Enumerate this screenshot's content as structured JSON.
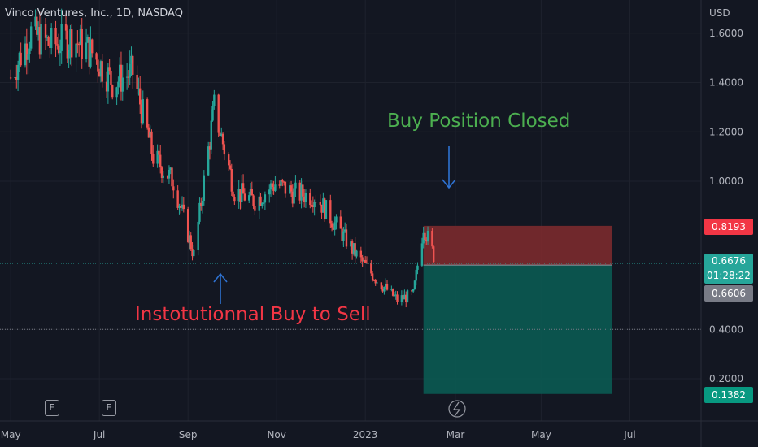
{
  "symbol_title": "Vinco Ventures, Inc., 1D, NASDAQ",
  "currency": "USD",
  "annotations": {
    "sell": "Instotutionnal Buy to Sell",
    "closed": "Buy Position Closed"
  },
  "price_tags": {
    "stop": "0.8193",
    "current": "0.6676",
    "countdown": "01:28:22",
    "entry": "0.6606",
    "target": "0.1382"
  },
  "earnings_badge": "E",
  "colors": {
    "up": "#26a69a",
    "down": "#ef5350",
    "stop_zone": "#7b2a2d",
    "target_zone": "#0b5a52",
    "arrow": "#2e72d2",
    "closed_text": "#4caf50",
    "sell_text": "#f23645"
  },
  "chart_data": {
    "type": "candlestick",
    "title": "Vinco Ventures, Inc., 1D, NASDAQ",
    "y_axis": {
      "ticks": [
        "1.6000",
        "1.4000",
        "1.2000",
        "1.0000",
        "0.4000",
        "0.2000"
      ],
      "tick_values": [
        1.6,
        1.4,
        1.2,
        1.0,
        0.4,
        0.2
      ],
      "range": [
        0.06,
        1.83
      ],
      "position": "right"
    },
    "x_axis": {
      "labels": [
        "May",
        "Jul",
        "Sep",
        "Nov",
        "2023",
        "Mar",
        "May",
        "Jul"
      ],
      "label_months": [
        0,
        2,
        4,
        6,
        8,
        10,
        12,
        14
      ],
      "start": "2022-03-28",
      "end": "2023-07-20"
    },
    "series": [
      {
        "date": "2022-04-01",
        "close": 1.42
      },
      {
        "date": "2022-04-15",
        "close": 1.6
      },
      {
        "date": "2022-04-29",
        "close": 1.55
      },
      {
        "date": "2022-05-13",
        "close": 1.58
      },
      {
        "date": "2022-05-27",
        "close": 1.52
      },
      {
        "date": "2022-06-10",
        "close": 1.4
      },
      {
        "date": "2022-06-24",
        "close": 1.44
      },
      {
        "date": "2022-07-08",
        "close": 1.1
      },
      {
        "date": "2022-07-22",
        "close": 1.0
      },
      {
        "date": "2022-08-05",
        "close": 0.7
      },
      {
        "date": "2022-08-19",
        "close": 1.3
      },
      {
        "date": "2022-09-02",
        "close": 0.96
      },
      {
        "date": "2022-09-16",
        "close": 0.92
      },
      {
        "date": "2022-09-30",
        "close": 0.99
      },
      {
        "date": "2022-10-14",
        "close": 0.95
      },
      {
        "date": "2022-10-28",
        "close": 0.94
      },
      {
        "date": "2022-11-11",
        "close": 0.82
      },
      {
        "date": "2022-11-25",
        "close": 0.7
      },
      {
        "date": "2022-12-09",
        "close": 0.6
      },
      {
        "date": "2022-12-23",
        "close": 0.52
      },
      {
        "date": "2023-01-03",
        "close": 0.54
      },
      {
        "date": "2023-01-10",
        "close": 0.82
      },
      {
        "date": "2023-01-17",
        "close": 0.7
      }
    ],
    "position": {
      "side": "long",
      "start": "2023-01-10",
      "end": "2023-05-20",
      "entry": 0.6606,
      "stop": 0.8193,
      "target": 0.1382
    },
    "last_price": 0.6676,
    "horizontal_lines": [
      0.6676,
      0.4
    ]
  }
}
